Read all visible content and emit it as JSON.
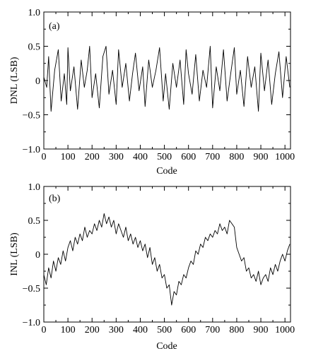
{
  "chart_data": [
    {
      "type": "line",
      "panel_label": "(a)",
      "xlabel": "Code",
      "ylabel": "DNL (LSB)",
      "xlim": [
        0,
        1023
      ],
      "ylim": [
        -1.0,
        1.0
      ],
      "x_ticks": [
        0,
        100,
        200,
        300,
        400,
        500,
        600,
        700,
        800,
        900,
        1000
      ],
      "y_ticks": [
        -1.0,
        -0.5,
        0,
        0.5,
        1.0
      ],
      "y_tick_labels": [
        "−1.0",
        "−0.5",
        "0",
        "0.5",
        "1.0"
      ],
      "grid": false,
      "series": [
        {
          "x": [
            0,
            12,
            20,
            30,
            45,
            60,
            72,
            85,
            95,
            100,
            110,
            125,
            140,
            155,
            168,
            180,
            190,
            200,
            215,
            230,
            245,
            258,
            270,
            285,
            300,
            310,
            325,
            340,
            355,
            368,
            380,
            395,
            410,
            420,
            435,
            450,
            465,
            480,
            495,
            505,
            520,
            535,
            550,
            565,
            580,
            590,
            600,
            615,
            630,
            645,
            660,
            675,
            690,
            700,
            715,
            730,
            745,
            760,
            775,
            790,
            800,
            815,
            830,
            845,
            860,
            875,
            890,
            900,
            915,
            930,
            945,
            960,
            975,
            990,
            1005,
            1020
          ],
          "values": [
            0.05,
            -0.1,
            0.35,
            -0.45,
            0.15,
            0.45,
            -0.3,
            0.1,
            -0.35,
            0.48,
            -0.15,
            0.2,
            -0.42,
            0.3,
            -0.1,
            0.15,
            0.5,
            -0.25,
            0.1,
            -0.4,
            0.35,
            0.5,
            -0.2,
            0.15,
            -0.35,
            0.45,
            -0.1,
            0.25,
            -0.3,
            0.1,
            0.4,
            -0.15,
            0.2,
            -0.38,
            0.3,
            -0.1,
            0.15,
            0.48,
            -0.3,
            0.1,
            -0.42,
            0.25,
            -0.1,
            0.3,
            -0.35,
            0.45,
            0.1,
            -0.2,
            0.38,
            -0.3,
            0.15,
            -0.1,
            0.5,
            -0.4,
            0.2,
            -0.15,
            0.45,
            -0.3,
            0.1,
            0.48,
            -0.2,
            0.15,
            -0.38,
            0.35,
            -0.1,
            0.2,
            -0.45,
            0.4,
            -0.15,
            0.3,
            -0.35,
            0.1,
            0.42,
            -0.25,
            0.35,
            -0.1
          ]
        }
      ]
    },
    {
      "type": "line",
      "panel_label": "(b)",
      "xlabel": "Code",
      "ylabel": "INL (LSB)",
      "xlim": [
        0,
        1023
      ],
      "ylim": [
        -1.0,
        1.0
      ],
      "x_ticks": [
        0,
        100,
        200,
        300,
        400,
        500,
        600,
        700,
        800,
        900,
        1000
      ],
      "y_ticks": [
        -1.0,
        -0.5,
        0,
        0.5,
        1.0
      ],
      "y_tick_labels": [
        "−1.0",
        "−0.5",
        "0",
        "0.5",
        "1.0"
      ],
      "grid": false,
      "series": [
        {
          "x": [
            0,
            10,
            20,
            30,
            40,
            50,
            60,
            70,
            80,
            90,
            100,
            110,
            120,
            130,
            140,
            150,
            160,
            170,
            180,
            190,
            200,
            210,
            220,
            230,
            240,
            250,
            260,
            270,
            280,
            290,
            300,
            310,
            320,
            330,
            340,
            350,
            360,
            370,
            380,
            390,
            400,
            410,
            420,
            430,
            440,
            450,
            460,
            470,
            480,
            490,
            500,
            510,
            520,
            530,
            540,
            550,
            560,
            570,
            580,
            590,
            600,
            610,
            620,
            630,
            640,
            650,
            660,
            670,
            680,
            690,
            700,
            710,
            720,
            730,
            740,
            750,
            760,
            770,
            780,
            790,
            800,
            810,
            820,
            830,
            840,
            850,
            860,
            870,
            880,
            890,
            900,
            910,
            920,
            930,
            940,
            950,
            960,
            970,
            980,
            990,
            1000,
            1010,
            1020
          ],
          "values": [
            -0.3,
            -0.45,
            -0.2,
            -0.35,
            -0.1,
            -0.25,
            -0.05,
            -0.15,
            0.05,
            -0.1,
            0.1,
            0.2,
            0.05,
            0.25,
            0.15,
            0.3,
            0.2,
            0.4,
            0.25,
            0.35,
            0.3,
            0.45,
            0.35,
            0.5,
            0.4,
            0.6,
            0.45,
            0.55,
            0.4,
            0.5,
            0.3,
            0.45,
            0.35,
            0.25,
            0.4,
            0.2,
            0.3,
            0.15,
            0.25,
            0.1,
            0.2,
            0.05,
            0.15,
            -0.05,
            0.1,
            -0.15,
            -0.05,
            -0.25,
            -0.15,
            -0.35,
            -0.3,
            -0.5,
            -0.45,
            -0.75,
            -0.55,
            -0.6,
            -0.4,
            -0.45,
            -0.3,
            -0.35,
            -0.2,
            -0.1,
            -0.15,
            0.05,
            0.0,
            0.15,
            0.1,
            0.25,
            0.2,
            0.3,
            0.25,
            0.35,
            0.3,
            0.45,
            0.35,
            0.4,
            0.3,
            0.5,
            0.45,
            0.4,
            0.1,
            0.0,
            -0.1,
            -0.05,
            -0.25,
            -0.2,
            -0.35,
            -0.3,
            -0.4,
            -0.25,
            -0.45,
            -0.35,
            -0.3,
            -0.4,
            -0.2,
            -0.3,
            -0.15,
            -0.25,
            -0.1,
            0.0,
            -0.1,
            0.05,
            0.15
          ]
        }
      ]
    }
  ]
}
